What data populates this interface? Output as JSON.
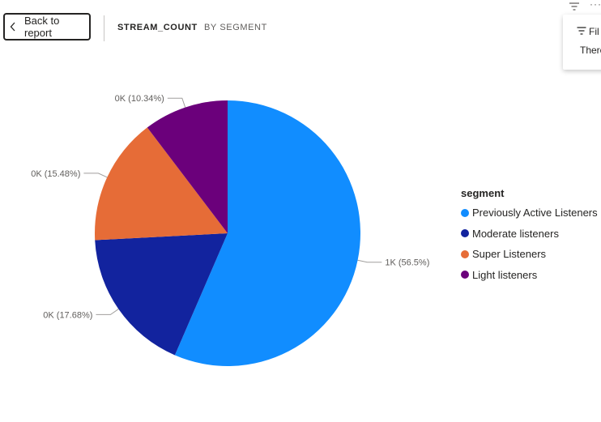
{
  "header": {
    "back_label": "Back to report",
    "title_measure": "STREAM_COUNT",
    "title_by": "BY SEGMENT"
  },
  "filter_panel": {
    "title": "Fil",
    "body": "There"
  },
  "chart_data": {
    "type": "pie",
    "legend_title": "segment",
    "legend_position": "right",
    "slices": [
      {
        "name": "Previously Active Listeners",
        "value": 56.5,
        "label": "1K (56.5%)",
        "color": "#118DFF"
      },
      {
        "name": "Moderate listeners",
        "value": 17.68,
        "label": "0K (17.68%)",
        "color": "#12239E"
      },
      {
        "name": "Super Listeners",
        "value": 15.48,
        "label": "0K (15.48%)",
        "color": "#E66C37"
      },
      {
        "name": "Light listeners",
        "value": 10.34,
        "label": "0K (10.34%)",
        "color": "#6B007B"
      }
    ]
  }
}
